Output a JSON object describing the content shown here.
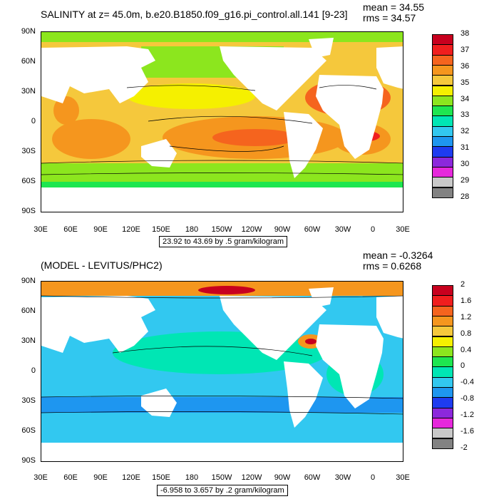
{
  "top": {
    "title": "SALINITY at z=  45.0m, b.e20.B1850.f09_g16.pi_control.all.141 [9-23]",
    "mean_text": "mean = 34.55",
    "rms_text": "rms = 34.57",
    "range_text": "23.92 to 43.69 by .5 gram/kilogram",
    "colorbar": {
      "labels": [
        "38",
        "37",
        "36",
        "35",
        "34",
        "33",
        "32",
        "31",
        "30",
        "29",
        "28"
      ],
      "colors": [
        "#c8001e",
        "#f01e1e",
        "#f5641e",
        "#f5961e",
        "#f5c83c",
        "#f5f000",
        "#8ce61e",
        "#1ee650",
        "#00e6b4",
        "#32c8f0",
        "#1e96f0",
        "#1e3cf0",
        "#8c28dc",
        "#e628dc",
        "#c8c8c8",
        "#828282"
      ]
    }
  },
  "bottom": {
    "title": "(MODEL - LEVITUS/PHC2)",
    "mean_text": "mean = -0.3264",
    "rms_text": "rms = 0.6268",
    "range_text": "-6.958 to 3.657 by .2 gram/kilogram",
    "colorbar": {
      "labels": [
        "2",
        "1.6",
        "1.2",
        "0.8",
        "0.4",
        "0",
        "-0.4",
        "-0.8",
        "-1.2",
        "-1.6",
        "-2"
      ],
      "colors": [
        "#c8001e",
        "#f01e1e",
        "#f5641e",
        "#f5961e",
        "#f5c83c",
        "#f5f000",
        "#8ce61e",
        "#1ee650",
        "#00e6b4",
        "#32c8f0",
        "#1e96f0",
        "#1e3cf0",
        "#8c28dc",
        "#e628dc",
        "#c8c8c8",
        "#828282"
      ]
    }
  },
  "axes": {
    "lat_labels": [
      "90N",
      "60N",
      "30N",
      "0",
      "30S",
      "60S",
      "90S"
    ],
    "lon_labels": [
      "30E",
      "60E",
      "90E",
      "120E",
      "150E",
      "180",
      "150W",
      "120W",
      "90W",
      "60W",
      "30W",
      "0",
      "30E"
    ]
  }
}
